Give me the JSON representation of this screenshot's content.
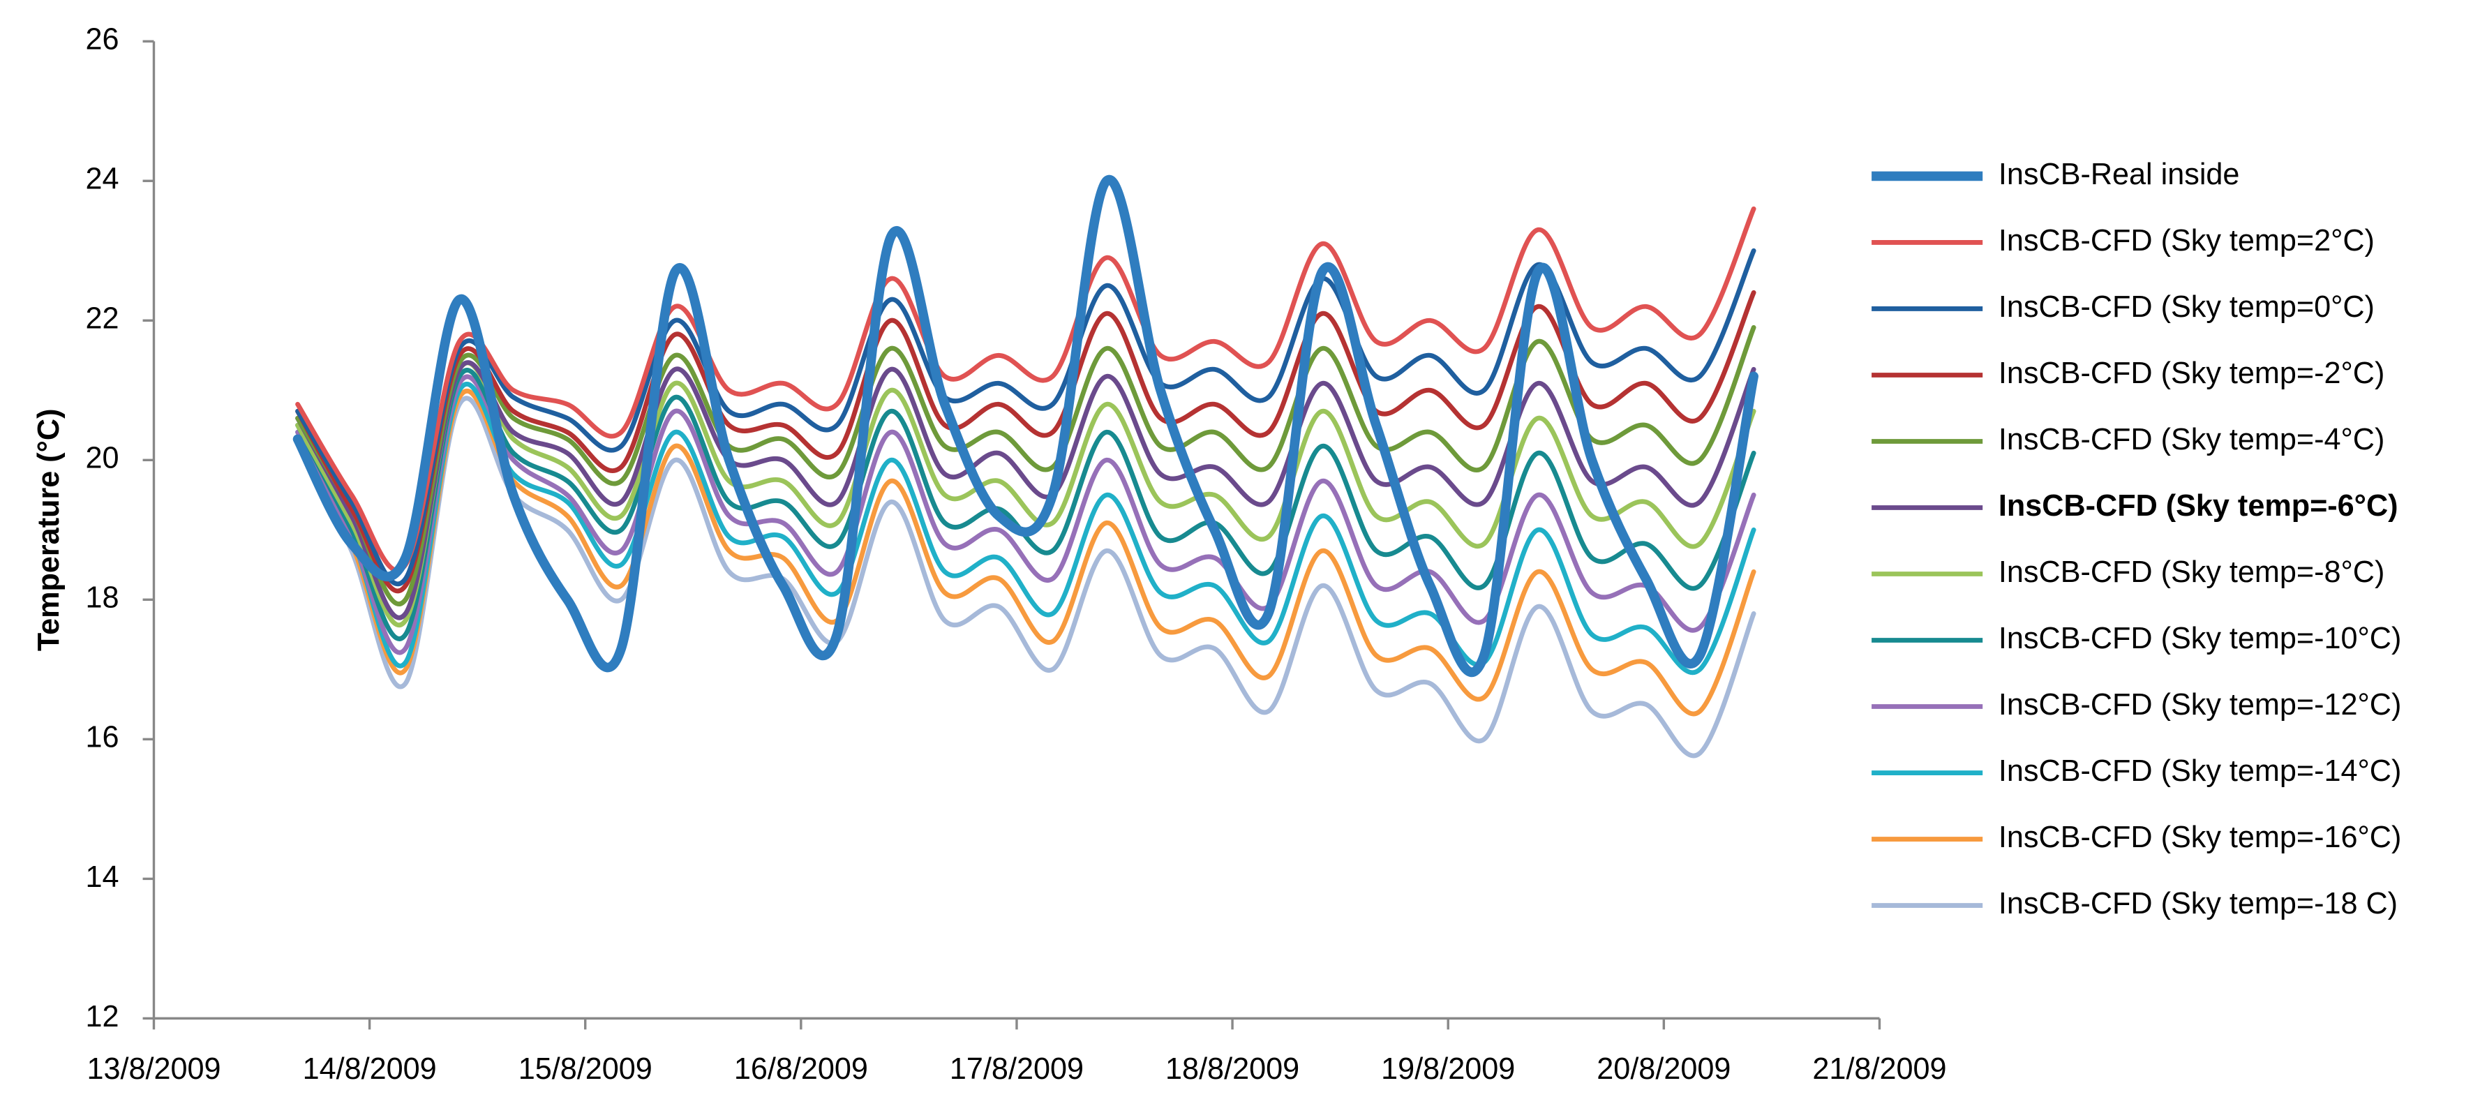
{
  "chart_data": {
    "type": "line",
    "ylabel": "Temperature (°C)",
    "x": [
      "2009-08-13T16:00",
      "2009-08-13T22:00",
      "2009-08-14T04:00",
      "2009-08-14T10:00",
      "2009-08-14T16:00",
      "2009-08-14T22:00",
      "2009-08-15T04:00",
      "2009-08-15T10:00",
      "2009-08-15T16:00",
      "2009-08-15T22:00",
      "2009-08-16T04:00",
      "2009-08-16T10:00",
      "2009-08-16T16:00",
      "2009-08-16T22:00",
      "2009-08-17T04:00",
      "2009-08-17T10:00",
      "2009-08-17T16:00",
      "2009-08-17T22:00",
      "2009-08-18T04:00",
      "2009-08-18T10:00",
      "2009-08-18T16:00",
      "2009-08-18T22:00",
      "2009-08-19T04:00",
      "2009-08-19T10:00",
      "2009-08-19T16:00",
      "2009-08-19T22:00",
      "2009-08-20T04:00",
      "2009-08-20T10:00"
    ],
    "xlim": [
      "2009-08-13T00:00",
      "2009-08-21T00:00"
    ],
    "xticks": [
      {
        "value": "2009-08-13T00:00",
        "label": "13/8/2009"
      },
      {
        "value": "2009-08-14T00:00",
        "label": "14/8/2009"
      },
      {
        "value": "2009-08-15T00:00",
        "label": "15/8/2009"
      },
      {
        "value": "2009-08-16T00:00",
        "label": "16/8/2009"
      },
      {
        "value": "2009-08-17T00:00",
        "label": "17/8/2009"
      },
      {
        "value": "2009-08-18T00:00",
        "label": "18/8/2009"
      },
      {
        "value": "2009-08-19T00:00",
        "label": "19/8/2009"
      },
      {
        "value": "2009-08-20T00:00",
        "label": "20/8/2009"
      },
      {
        "value": "2009-08-21T00:00",
        "label": "21/8/2009"
      }
    ],
    "ylim": [
      12,
      26
    ],
    "yticks": [
      12,
      14,
      16,
      18,
      20,
      22,
      24,
      26
    ],
    "legend": "right",
    "series": [
      {
        "name": "InsCB-Real inside",
        "color": "#2f7dbf",
        "width": 6,
        "values": [
          20.3,
          18.8,
          18.6,
          22.3,
          19.5,
          18.0,
          17.3,
          22.7,
          20.0,
          18.2,
          17.5,
          23.2,
          20.8,
          19.2,
          19.5,
          24.0,
          21.0,
          19.0,
          17.8,
          22.7,
          20.5,
          18.2,
          17.2,
          22.7,
          20.0,
          18.3,
          17.2,
          21.2
        ]
      },
      {
        "name": "InsCB-CFD (Sky temp=2°C)",
        "color": "#e05252",
        "width": 3,
        "values": [
          20.8,
          19.5,
          18.5,
          21.7,
          21.0,
          20.8,
          20.4,
          22.2,
          21.0,
          21.1,
          20.8,
          22.6,
          21.2,
          21.5,
          21.2,
          22.9,
          21.5,
          21.7,
          21.4,
          23.1,
          21.7,
          22.0,
          21.6,
          23.3,
          21.9,
          22.2,
          21.8,
          23.6
        ]
      },
      {
        "name": "InsCB-CFD (Sky temp=0°C)",
        "color": "#1f5f9f",
        "width": 3,
        "values": [
          20.7,
          19.4,
          18.3,
          21.6,
          20.9,
          20.6,
          20.2,
          22.0,
          20.7,
          20.8,
          20.5,
          22.3,
          20.9,
          21.1,
          20.8,
          22.5,
          21.1,
          21.3,
          20.9,
          22.6,
          21.2,
          21.5,
          21.0,
          22.8,
          21.4,
          21.6,
          21.2,
          23.0
        ]
      },
      {
        "name": "InsCB-CFD (Sky temp=-2°C)",
        "color": "#b53232",
        "width": 3,
        "values": [
          20.7,
          19.3,
          18.2,
          21.5,
          20.7,
          20.4,
          19.9,
          21.8,
          20.5,
          20.5,
          20.1,
          22.0,
          20.5,
          20.8,
          20.4,
          22.1,
          20.6,
          20.8,
          20.4,
          22.1,
          20.7,
          21.0,
          20.5,
          22.2,
          20.8,
          21.1,
          20.6,
          22.4
        ]
      },
      {
        "name": "InsCB-CFD (Sky temp=-4°C)",
        "color": "#6e9a3a",
        "width": 3,
        "values": [
          20.6,
          19.3,
          18.0,
          21.4,
          20.6,
          20.3,
          19.7,
          21.5,
          20.2,
          20.3,
          19.8,
          21.6,
          20.2,
          20.4,
          19.9,
          21.6,
          20.2,
          20.4,
          19.9,
          21.6,
          20.2,
          20.4,
          19.9,
          21.7,
          20.3,
          20.5,
          20.0,
          21.9
        ]
      },
      {
        "name": "InsCB-CFD (Sky temp=-6°C)",
        "color": "#6a4a8c",
        "width": 3,
        "bold": true,
        "values": [
          20.6,
          19.2,
          17.8,
          21.3,
          20.4,
          20.1,
          19.4,
          21.3,
          20.0,
          20.0,
          19.4,
          21.3,
          19.8,
          20.1,
          19.5,
          21.2,
          19.8,
          19.9,
          19.4,
          21.1,
          19.7,
          19.9,
          19.4,
          21.1,
          19.7,
          19.9,
          19.4,
          21.3
        ]
      },
      {
        "name": "InsCB-CFD (Sky temp=-8°C)",
        "color": "#9bc45a",
        "width": 3,
        "values": [
          20.5,
          19.1,
          17.7,
          21.3,
          20.3,
          19.9,
          19.2,
          21.1,
          19.7,
          19.7,
          19.1,
          21.0,
          19.5,
          19.7,
          19.1,
          20.8,
          19.4,
          19.5,
          18.9,
          20.7,
          19.2,
          19.4,
          18.8,
          20.6,
          19.2,
          19.4,
          18.8,
          20.7
        ]
      },
      {
        "name": "InsCB-CFD (Sky temp=-10°C)",
        "color": "#178a90",
        "width": 3,
        "values": [
          20.5,
          19.0,
          17.5,
          21.2,
          20.1,
          19.7,
          19.0,
          20.9,
          19.4,
          19.4,
          18.8,
          20.7,
          19.1,
          19.3,
          18.7,
          20.4,
          18.9,
          19.1,
          18.4,
          20.2,
          18.7,
          18.9,
          18.2,
          20.1,
          18.6,
          18.8,
          18.2,
          20.1
        ]
      },
      {
        "name": "InsCB-CFD (Sky temp=-12°C)",
        "color": "#9670b8",
        "width": 3,
        "values": [
          20.4,
          18.9,
          17.3,
          21.1,
          20.0,
          19.5,
          18.7,
          20.7,
          19.2,
          19.1,
          18.4,
          20.4,
          18.8,
          19.0,
          18.3,
          20.0,
          18.5,
          18.6,
          17.9,
          19.7,
          18.2,
          18.4,
          17.7,
          19.5,
          18.1,
          18.2,
          17.6,
          19.5
        ]
      },
      {
        "name": "InsCB-CFD (Sky temp=-14°C)",
        "color": "#20b0c8",
        "width": 3,
        "values": [
          20.4,
          18.9,
          17.1,
          21.0,
          19.8,
          19.4,
          18.5,
          20.4,
          18.9,
          18.9,
          18.1,
          20.0,
          18.4,
          18.6,
          17.8,
          19.5,
          18.1,
          18.2,
          17.4,
          19.2,
          17.7,
          17.8,
          17.1,
          19.0,
          17.5,
          17.6,
          17.0,
          19.0
        ]
      },
      {
        "name": "InsCB-CFD (Sky temp=-16°C)",
        "color": "#f79a3e",
        "width": 3,
        "values": [
          20.3,
          18.8,
          17.0,
          20.9,
          19.7,
          19.2,
          18.2,
          20.2,
          18.7,
          18.6,
          17.7,
          19.7,
          18.1,
          18.3,
          17.4,
          19.1,
          17.6,
          17.7,
          16.9,
          18.7,
          17.2,
          17.3,
          16.6,
          18.4,
          17.0,
          17.1,
          16.4,
          18.4
        ]
      },
      {
        "name": "InsCB-CFD (Sky temp=-18 C)",
        "color": "#a6b9d9",
        "width": 3,
        "values": [
          20.3,
          18.7,
          16.8,
          20.8,
          19.5,
          19.0,
          18.0,
          20.0,
          18.4,
          18.3,
          17.4,
          19.4,
          17.7,
          17.9,
          17.0,
          18.7,
          17.2,
          17.3,
          16.4,
          18.2,
          16.7,
          16.8,
          16.0,
          17.9,
          16.4,
          16.5,
          15.8,
          17.8
        ]
      }
    ]
  }
}
